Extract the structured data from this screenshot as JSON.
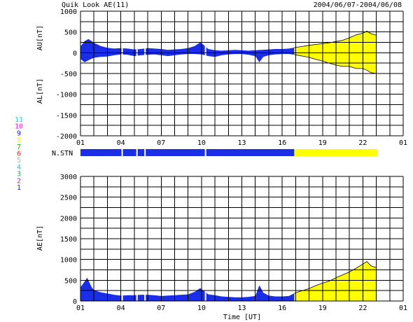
{
  "header": {
    "title": "Quik Look AE(11)",
    "date_range": "2004/06/07-2004/06/08"
  },
  "colors": {
    "blue": "#1a2ee8",
    "yellow": "#ffff00",
    "black": "#000000"
  },
  "station_scale": {
    "labels": [
      "11",
      "10",
      "9",
      "8",
      "7",
      "6",
      "5",
      "4",
      "3",
      "2",
      "1"
    ],
    "colors": [
      "#00e5e5",
      "#ff00ff",
      "#1010ff",
      "#ffee44",
      "#20b020",
      "#ff2020",
      "#b0b0b0",
      "#20c0c0",
      "#22aa55",
      "#c020c0",
      "#2020ff"
    ]
  },
  "nstn_label": "N.STN",
  "chart_data": [
    {
      "type": "area",
      "name": "AU/AL",
      "ylabel_top": "AU[nT]",
      "ylabel_bottom": "AL[nT]",
      "ylim": [
        -2000,
        1000
      ],
      "yticks": [
        1000,
        500,
        0,
        -500,
        -1000,
        -1500,
        -2000
      ],
      "xlim": [
        1,
        25
      ],
      "xtick_labels": [
        "01",
        "04",
        "07",
        "10",
        "13",
        "16",
        "19",
        "22",
        "01"
      ],
      "xtick_hours": [
        1,
        4,
        7,
        10,
        13,
        16,
        19,
        22,
        25
      ],
      "grid": true,
      "blue_end_hour": 16.9,
      "data_end_hour": 23.1,
      "gaps_hours": [
        4.1,
        5.2,
        5.8,
        10.3
      ],
      "au": {
        "x": [
          1.0,
          1.3,
          1.6,
          2.0,
          2.5,
          3.0,
          3.5,
          4.0,
          4.5,
          5.0,
          5.5,
          6.0,
          6.5,
          7.0,
          7.5,
          8.0,
          8.5,
          9.0,
          9.5,
          9.9,
          10.2,
          10.5,
          11.0,
          11.5,
          12.0,
          12.5,
          13.0,
          13.5,
          14.0,
          14.5,
          15.0,
          15.5,
          16.0,
          16.5,
          17.0,
          17.5,
          18.0,
          18.5,
          19.0,
          19.5,
          20.0,
          20.5,
          21.0,
          21.5,
          22.0,
          22.3,
          22.6,
          23.0
        ],
        "y": [
          150,
          280,
          330,
          240,
          160,
          120,
          100,
          110,
          100,
          80,
          90,
          110,
          100,
          90,
          70,
          80,
          90,
          110,
          160,
          250,
          180,
          90,
          60,
          50,
          60,
          70,
          60,
          50,
          60,
          70,
          80,
          90,
          90,
          100,
          130,
          150,
          180,
          200,
          220,
          240,
          270,
          300,
          360,
          430,
          470,
          520,
          460,
          420
        ]
      },
      "al": {
        "x": [
          1.0,
          1.3,
          1.6,
          2.0,
          2.5,
          3.0,
          3.5,
          4.0,
          4.5,
          5.0,
          5.5,
          6.0,
          6.5,
          7.0,
          7.5,
          8.0,
          8.5,
          9.0,
          9.5,
          10.0,
          10.5,
          11.0,
          11.5,
          12.0,
          12.5,
          13.0,
          13.5,
          14.0,
          14.3,
          14.6,
          15.0,
          15.5,
          16.0,
          16.5,
          17.0,
          17.5,
          18.0,
          18.5,
          19.0,
          19.5,
          20.0,
          20.5,
          21.0,
          21.5,
          22.0,
          22.3,
          22.6,
          23.0
        ],
        "y": [
          -150,
          -230,
          -180,
          -120,
          -100,
          -90,
          -60,
          -40,
          -50,
          -80,
          -60,
          -50,
          -40,
          -60,
          -80,
          -60,
          -40,
          -30,
          -30,
          -40,
          -80,
          -100,
          -60,
          -40,
          -30,
          -30,
          -50,
          -80,
          -230,
          -100,
          -60,
          -40,
          -30,
          -30,
          -50,
          -80,
          -110,
          -160,
          -200,
          -250,
          -300,
          -330,
          -330,
          -380,
          -380,
          -420,
          -480,
          -500
        ]
      }
    },
    {
      "type": "area",
      "name": "AE",
      "ylabel": "AE[nT]",
      "xlabel": "Time [UT]",
      "ylim": [
        0,
        3000
      ],
      "yticks": [
        3000,
        2500,
        2000,
        1500,
        1000,
        500,
        0
      ],
      "xlim": [
        1,
        25
      ],
      "xtick_labels": [
        "01",
        "04",
        "07",
        "10",
        "13",
        "16",
        "19",
        "22",
        "01"
      ],
      "xtick_hours": [
        1,
        4,
        7,
        10,
        13,
        16,
        19,
        22,
        25
      ],
      "grid": true,
      "blue_end_hour": 16.9,
      "data_end_hour": 23.1,
      "gaps_hours": [
        4.1,
        5.2,
        5.8,
        10.3
      ],
      "ae": {
        "x": [
          1.0,
          1.2,
          1.5,
          1.8,
          2.0,
          2.5,
          3.0,
          3.5,
          4.0,
          4.5,
          5.0,
          5.5,
          6.0,
          6.5,
          7.0,
          7.5,
          8.0,
          8.5,
          9.0,
          9.5,
          9.9,
          10.2,
          10.5,
          11.0,
          11.5,
          12.0,
          12.5,
          13.0,
          13.5,
          14.0,
          14.3,
          14.6,
          15.0,
          15.5,
          16.0,
          16.5,
          17.0,
          17.5,
          18.0,
          18.5,
          19.0,
          19.5,
          20.0,
          20.5,
          21.0,
          21.5,
          22.0,
          22.3,
          22.6,
          23.0
        ],
        "y": [
          330,
          420,
          560,
          350,
          260,
          210,
          180,
          150,
          130,
          140,
          140,
          150,
          150,
          140,
          120,
          130,
          140,
          150,
          160,
          220,
          310,
          240,
          160,
          140,
          110,
          100,
          90,
          90,
          100,
          120,
          380,
          200,
          130,
          110,
          110,
          120,
          200,
          250,
          300,
          370,
          430,
          480,
          560,
          630,
          700,
          790,
          890,
          950,
          850,
          800
        ]
      }
    }
  ]
}
